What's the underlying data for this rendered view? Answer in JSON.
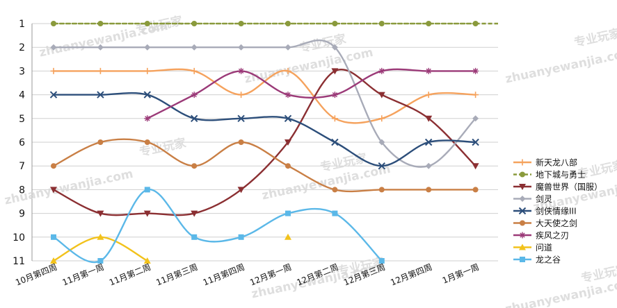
{
  "chart_data": {
    "type": "line",
    "title": "",
    "xlabel": "",
    "ylabel": "",
    "y_reversed": true,
    "ylim": [
      1,
      11
    ],
    "yticks": [
      1,
      2,
      3,
      4,
      5,
      6,
      7,
      8,
      9,
      10,
      11
    ],
    "grid": true,
    "legend_position": "right",
    "smooth": true,
    "categories": [
      "10月第四周",
      "11月第一周",
      "11月第二周",
      "11月第三周",
      "11月第四周",
      "12月第一周",
      "12月第二周",
      "12月第三周",
      "12月第四周",
      "1月第一周"
    ],
    "series": [
      {
        "name": "新天龙八部",
        "color": "#f5a25d",
        "marker": "plus",
        "values": [
          3,
          3,
          3,
          3,
          4,
          3,
          5,
          5,
          4,
          4
        ]
      },
      {
        "name": "地下城与勇士",
        "color": "#8a9a3c",
        "marker": "circle",
        "dashed": true,
        "values": [
          1,
          1,
          1,
          1,
          1,
          1,
          1,
          1,
          1,
          1
        ]
      },
      {
        "name": "魔兽世界（国服）",
        "color": "#8b2f32",
        "marker": "triangle-down",
        "values": [
          8,
          9,
          9,
          9,
          8,
          6,
          3,
          4,
          5,
          7
        ]
      },
      {
        "name": "剑灵",
        "color": "#a8abb8",
        "marker": "diamond",
        "values": [
          2,
          2,
          2,
          2,
          2,
          2,
          2,
          6,
          7,
          5
        ]
      },
      {
        "name": "剑侠情缘III",
        "color": "#2c4e7a",
        "marker": "x",
        "values": [
          4,
          4,
          4,
          5,
          5,
          5,
          6,
          7,
          6,
          6
        ]
      },
      {
        "name": "大天使之剑",
        "color": "#c97f45",
        "marker": "circle",
        "values": [
          7,
          6,
          6,
          7,
          6,
          7,
          8,
          8,
          8,
          8
        ]
      },
      {
        "name": "疾风之刃",
        "color": "#9b3a78",
        "marker": "star",
        "values": [
          null,
          null,
          5,
          4,
          3,
          4,
          4,
          3,
          3,
          3
        ]
      },
      {
        "name": "问道",
        "color": "#f2c21b",
        "marker": "triangle",
        "values": [
          11,
          10,
          11,
          null,
          null,
          10,
          null,
          null,
          null,
          null
        ]
      },
      {
        "name": "龙之谷",
        "color": "#5bb8e8",
        "marker": "square",
        "values": [
          10,
          11,
          8,
          10,
          10,
          9,
          9,
          11,
          null,
          null
        ]
      }
    ],
    "watermarks": [
      "专业玩家",
      "zhuanyewanjia.com"
    ]
  }
}
